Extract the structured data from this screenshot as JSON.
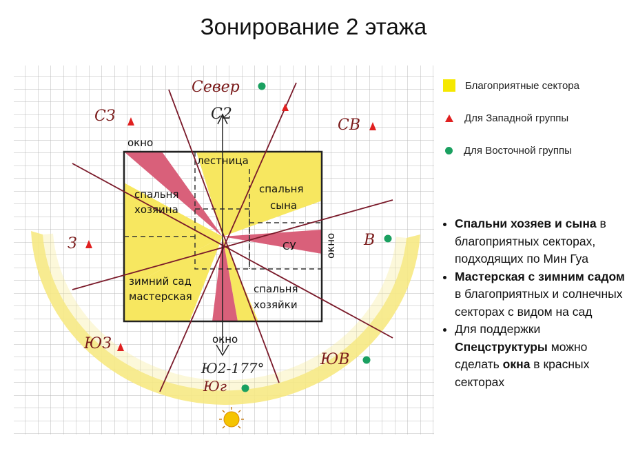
{
  "title": "Зонирование 2 этажа",
  "diagram": {
    "rooms": {
      "window_nw": "окно",
      "stairs": "лестница",
      "master_bedroom_1": "спальня",
      "master_bedroom_2": "хозяина",
      "son_bedroom_1": "спальня",
      "son_bedroom_2": "сына",
      "bathroom": "СУ",
      "window_e": "окно",
      "winter_garden_1": "зимний сад",
      "winter_garden_2": "мастерская",
      "mistress_bedroom_1": "спальня",
      "mistress_bedroom_2": "хозяйки",
      "window_s": "окно"
    },
    "directions": {
      "north": "Север",
      "north_mag": "С2",
      "nw": "СЗ",
      "ne": "СВ",
      "w": "З",
      "e": "В",
      "sw": "ЮЗ",
      "se": "ЮВ",
      "south_mag": "Ю2-177°",
      "south": "Юг"
    },
    "colors": {
      "favorable": "#f5e800",
      "west_group": "#e02020",
      "east_group": "#1aa060",
      "red_sector": "#d9607a",
      "line": "#7a1a2a"
    }
  },
  "legend": [
    {
      "icon": "yellow-square",
      "label": "Благоприятные сектора"
    },
    {
      "icon": "red-triangle",
      "label": "Для Западной группы"
    },
    {
      "icon": "green-dot",
      "label": "Для Восточной группы"
    }
  ],
  "bullets": [
    {
      "bold": "Спальни хозяев и сына",
      "text": " в благоприятных секторах, подходящих по Мин Гуа"
    },
    {
      "bold": "Мастерская с зимним садом",
      "text": " в благоприятных и солнечных секторах с видом на сад"
    },
    {
      "pre": "Для поддержки ",
      "bold": "Спецструктуры",
      "mid": " можно сделать ",
      "bold2": "окна",
      "text": " в красных секторах"
    }
  ]
}
